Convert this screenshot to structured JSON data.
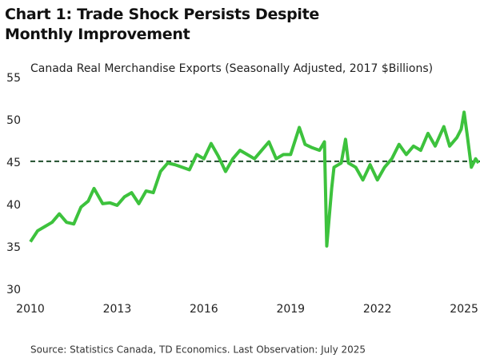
{
  "chart_data": {
    "type": "line",
    "title": "Chart 1: Trade Shock Persists Despite Monthly Improvement",
    "subtitle": "Canada Real Merchandise Exports (Seasonally Adjusted, 2017 $Billions)",
    "source": "Source: Statistics Canada, TD Economics.  Last Observation: July 2025",
    "x": [
      2010,
      2010.25,
      2010.5,
      2010.75,
      2011,
      2011.25,
      2011.5,
      2011.75,
      2012,
      2012.2,
      2012.5,
      2012.75,
      2013,
      2013.25,
      2013.5,
      2013.75,
      2014,
      2014.25,
      2014.5,
      2014.75,
      2015,
      2015.25,
      2015.5,
      2015.75,
      2016,
      2016.25,
      2016.5,
      2016.75,
      2017,
      2017.25,
      2017.5,
      2017.75,
      2018,
      2018.25,
      2018.5,
      2018.75,
      2019,
      2019.3,
      2019.5,
      2019.75,
      2020,
      2020.17,
      2020.25,
      2020.42,
      2020.5,
      2020.75,
      2020.9,
      2021,
      2021.25,
      2021.5,
      2021.75,
      2022,
      2022.25,
      2022.5,
      2022.75,
      2023,
      2023.25,
      2023.5,
      2023.75,
      2024,
      2024.3,
      2024.5,
      2024.75,
      2024.9,
      2025,
      2025.1,
      2025.25,
      2025.4,
      2025.5
    ],
    "series": [
      {
        "name": "Canada Real Merchandise Exports",
        "color": "#3dc23d",
        "values": [
          35.7,
          37.0,
          37.5,
          38.0,
          39.0,
          38.0,
          37.8,
          39.8,
          40.5,
          42.0,
          40.2,
          40.3,
          40.0,
          41.0,
          41.5,
          40.2,
          41.7,
          41.5,
          44.0,
          45.0,
          44.8,
          44.5,
          44.2,
          46.0,
          45.5,
          47.3,
          45.8,
          44.0,
          45.5,
          46.5,
          46.0,
          45.5,
          46.5,
          47.5,
          45.5,
          46.0,
          46.0,
          49.2,
          47.2,
          46.8,
          46.5,
          47.5,
          35.2,
          42.0,
          44.5,
          45.0,
          47.8,
          45.0,
          44.5,
          43.0,
          44.8,
          43.0,
          44.5,
          45.5,
          47.2,
          46.0,
          47.0,
          46.5,
          48.5,
          47.0,
          49.3,
          47.0,
          48.0,
          49.0,
          51.0,
          48.5,
          44.5,
          45.5,
          45.0
        ]
      }
    ],
    "reference_line": {
      "value": 45.2,
      "color": "#1f4d2b"
    },
    "xlim": [
      2010,
      2025.55
    ],
    "xticks": [
      2010,
      2013,
      2016,
      2019,
      2022,
      2025
    ],
    "ylim": [
      30,
      55
    ],
    "yticks": [
      30,
      35,
      40,
      45,
      50,
      55
    ],
    "grid": false
  }
}
